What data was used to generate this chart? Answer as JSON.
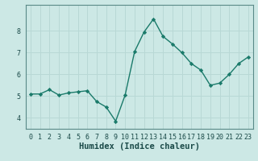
{
  "x": [
    0,
    1,
    2,
    3,
    4,
    5,
    6,
    7,
    8,
    9,
    10,
    11,
    12,
    13,
    14,
    15,
    16,
    17,
    18,
    19,
    20,
    21,
    22,
    23
  ],
  "y": [
    5.1,
    5.1,
    5.3,
    5.05,
    5.15,
    5.2,
    5.25,
    4.75,
    4.5,
    3.85,
    5.05,
    7.05,
    7.95,
    8.55,
    7.75,
    7.4,
    7.0,
    6.5,
    6.2,
    5.5,
    5.6,
    6.0,
    6.5,
    6.8
  ],
  "line_color": "#1a7a6a",
  "marker": "D",
  "marker_size": 2.2,
  "line_width": 1.0,
  "xlabel": "Humidex (Indice chaleur)",
  "xlabel_fontsize": 7.5,
  "xlabel_fontweight": "bold",
  "xlabel_color": "#1a3a3a",
  "ylim": [
    3.5,
    9.2
  ],
  "xlim": [
    -0.5,
    23.5
  ],
  "yticks": [
    4,
    5,
    6,
    7,
    8
  ],
  "xticks": [
    0,
    1,
    2,
    3,
    4,
    5,
    6,
    7,
    8,
    9,
    10,
    11,
    12,
    13,
    14,
    15,
    16,
    17,
    18,
    19,
    20,
    21,
    22,
    23
  ],
  "grid_color": "#b8d8d5",
  "background_color": "#cce8e5",
  "tick_fontsize": 6.0,
  "tick_color": "#1a4a48",
  "spine_color": "#5a8a88"
}
